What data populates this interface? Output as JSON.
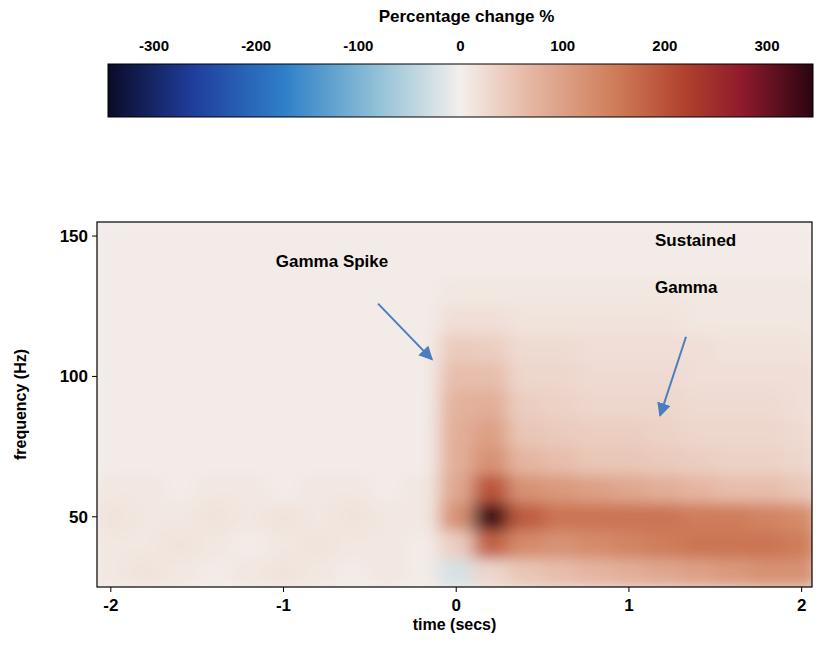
{
  "chart_data": {
    "type": "heatmap",
    "xlabel": "time (secs)",
    "ylabel": "frequency (Hz)",
    "xlim": [
      -2.08,
      2.06
    ],
    "ylim": [
      25,
      155
    ],
    "xticks": [
      -2,
      -1,
      0,
      1,
      2
    ],
    "yticks": [
      50,
      100,
      150
    ],
    "x_edges": [
      -2.1,
      -1.9,
      -1.7,
      -1.5,
      -1.3,
      -1.1,
      -0.9,
      -0.7,
      -0.5,
      -0.3,
      -0.1,
      0.1,
      0.3,
      0.5,
      0.7,
      0.9,
      1.1,
      1.3,
      1.5,
      1.7,
      1.9,
      2.1
    ],
    "y_edges": [
      25,
      35,
      45,
      55,
      65,
      75,
      85,
      95,
      105,
      115,
      125,
      135,
      145,
      155
    ],
    "cells": [
      [
        10,
        15,
        10,
        5,
        10,
        15,
        10,
        5,
        10,
        5,
        -25,
        30,
        50,
        60,
        70,
        80,
        90,
        100,
        110,
        120,
        120
      ],
      [
        10,
        10,
        15,
        10,
        5,
        10,
        15,
        10,
        10,
        5,
        40,
        180,
        130,
        120,
        130,
        140,
        150,
        160,
        160,
        160,
        150
      ],
      [
        15,
        10,
        10,
        15,
        10,
        15,
        10,
        15,
        10,
        10,
        120,
        330,
        190,
        160,
        160,
        160,
        160,
        150,
        150,
        140,
        130
      ],
      [
        10,
        10,
        5,
        10,
        10,
        5,
        10,
        10,
        5,
        10,
        90,
        200,
        120,
        110,
        100,
        90,
        80,
        70,
        60,
        60,
        50
      ],
      [
        5,
        5,
        5,
        5,
        5,
        5,
        5,
        5,
        5,
        5,
        80,
        120,
        70,
        60,
        50,
        50,
        45,
        40,
        35,
        35,
        30
      ],
      [
        5,
        5,
        5,
        5,
        5,
        5,
        5,
        5,
        5,
        5,
        80,
        100,
        50,
        45,
        40,
        40,
        35,
        30,
        30,
        30,
        25
      ],
      [
        5,
        5,
        5,
        5,
        5,
        5,
        5,
        5,
        5,
        5,
        75,
        80,
        40,
        35,
        30,
        30,
        30,
        25,
        25,
        25,
        20
      ],
      [
        5,
        5,
        5,
        5,
        5,
        5,
        5,
        5,
        5,
        5,
        60,
        60,
        30,
        30,
        25,
        25,
        25,
        20,
        20,
        20,
        20
      ],
      [
        5,
        5,
        5,
        5,
        5,
        5,
        5,
        5,
        5,
        5,
        45,
        40,
        25,
        25,
        20,
        20,
        20,
        20,
        15,
        15,
        15
      ],
      [
        5,
        5,
        5,
        5,
        5,
        5,
        5,
        5,
        5,
        5,
        20,
        20,
        15,
        15,
        15,
        15,
        15,
        10,
        10,
        10,
        10
      ],
      [
        5,
        5,
        5,
        5,
        5,
        5,
        5,
        5,
        5,
        5,
        10,
        10,
        10,
        10,
        10,
        10,
        10,
        10,
        10,
        10,
        10
      ],
      [
        5,
        5,
        5,
        5,
        5,
        5,
        5,
        5,
        5,
        5,
        5,
        5,
        5,
        5,
        5,
        5,
        5,
        5,
        5,
        5,
        5
      ],
      [
        5,
        5,
        5,
        5,
        5,
        5,
        5,
        5,
        5,
        5,
        5,
        5,
        5,
        5,
        5,
        5,
        5,
        5,
        5,
        5,
        5
      ]
    ],
    "colorbar": {
      "label": "Percentage change %",
      "range": [
        -345,
        345
      ],
      "ticks": [
        -300,
        -200,
        -100,
        0,
        100,
        200,
        300
      ]
    },
    "annotations": [
      {
        "text": "Gamma Spike",
        "x": -0.14,
        "y": 106
      },
      {
        "text": "Sustained Gamma",
        "x": 1.18,
        "y": 86
      }
    ]
  }
}
